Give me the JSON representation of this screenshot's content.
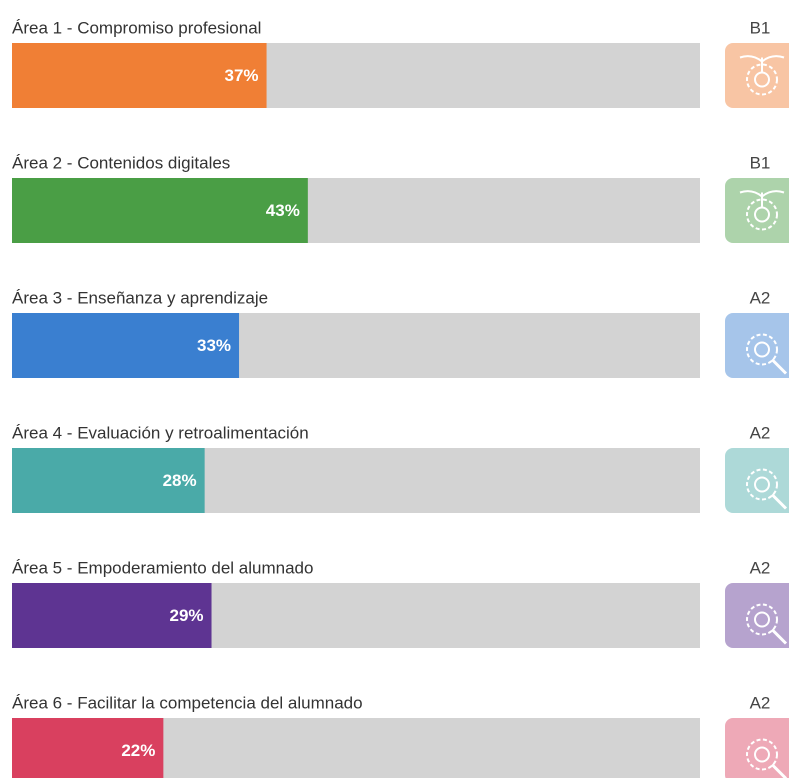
{
  "areas": [
    {
      "label": "Área 1 - Compromiso profesional",
      "value": 37,
      "value_label": "37%",
      "level": "B1",
      "color": "#f07f35"
    },
    {
      "label": "Área 2 - Contenidos digitales",
      "value": 43,
      "value_label": "43%",
      "level": "B1",
      "color": "#4a9e45"
    },
    {
      "label": "Área 3 - Enseñanza y aprendizaje",
      "value": 33,
      "value_label": "33%",
      "level": "A2",
      "color": "#3a7fd0"
    },
    {
      "label": "Área 4 - Evaluación y retroalimentación",
      "value": 28,
      "value_label": "28%",
      "level": "A2",
      "color": "#4aaaa8"
    },
    {
      "label": "Área 5 - Empoderamiento del alumnado",
      "value": 29,
      "value_label": "29%",
      "level": "A2",
      "color": "#5e3492"
    },
    {
      "label": "Área 6 - Facilitar la competencia del alumnado",
      "value": 22,
      "value_label": "22%",
      "level": "A2",
      "color": "#d9405f"
    }
  ]
}
